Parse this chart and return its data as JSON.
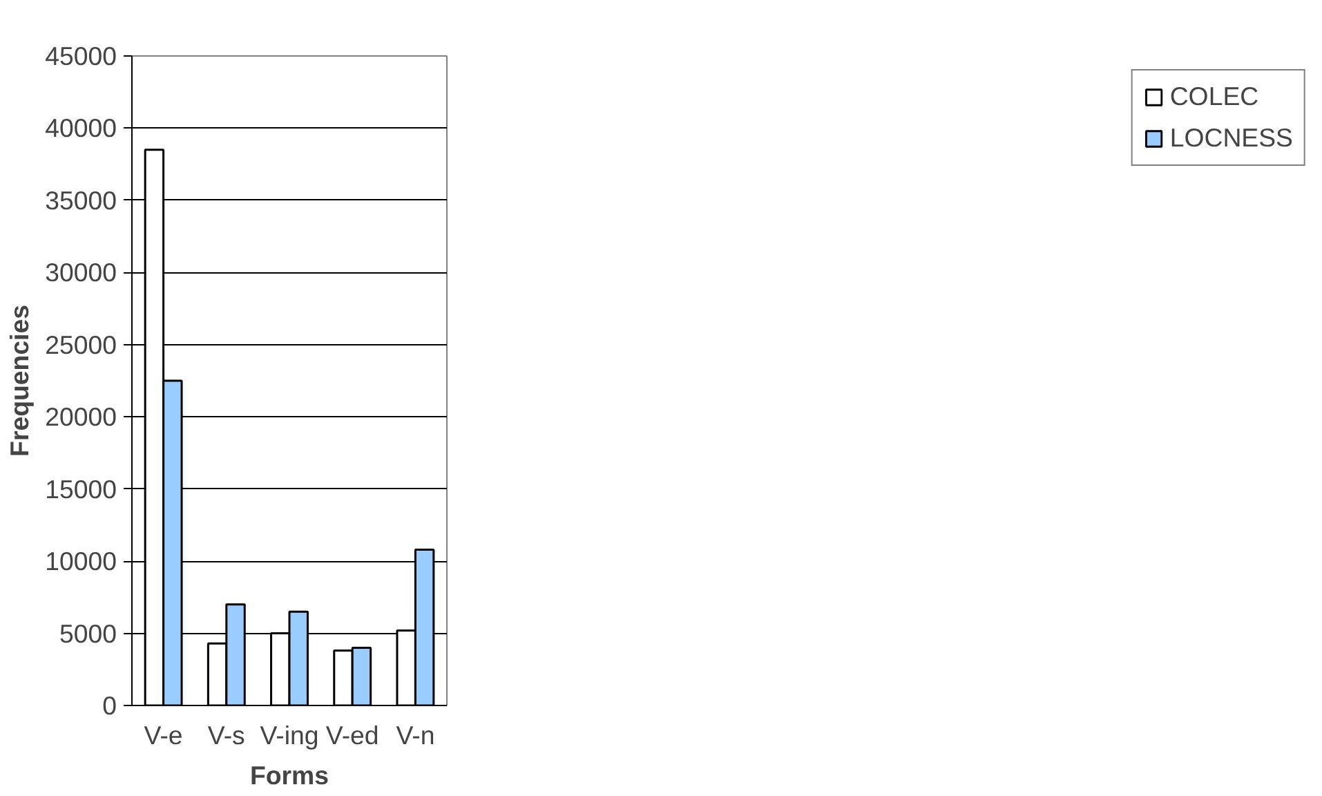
{
  "chart_data": {
    "type": "bar",
    "xlabel": "Forms",
    "ylabel": "Frequencies",
    "categories": [
      "V-e",
      "V-s",
      "V-ing",
      "V-ed",
      "V-n"
    ],
    "series": [
      {
        "name": "COLEC",
        "color": "#ffffff",
        "values": [
          38500,
          4300,
          5000,
          3800,
          5200
        ]
      },
      {
        "name": "LOCNESS",
        "color": "#99ccff",
        "values": [
          22500,
          7000,
          6500,
          4000,
          10800
        ]
      }
    ],
    "ylim": [
      0,
      45000
    ],
    "yticks": [
      0,
      5000,
      10000,
      15000,
      20000,
      25000,
      30000,
      35000,
      40000,
      45000
    ],
    "grid": "y",
    "legend": "right"
  }
}
